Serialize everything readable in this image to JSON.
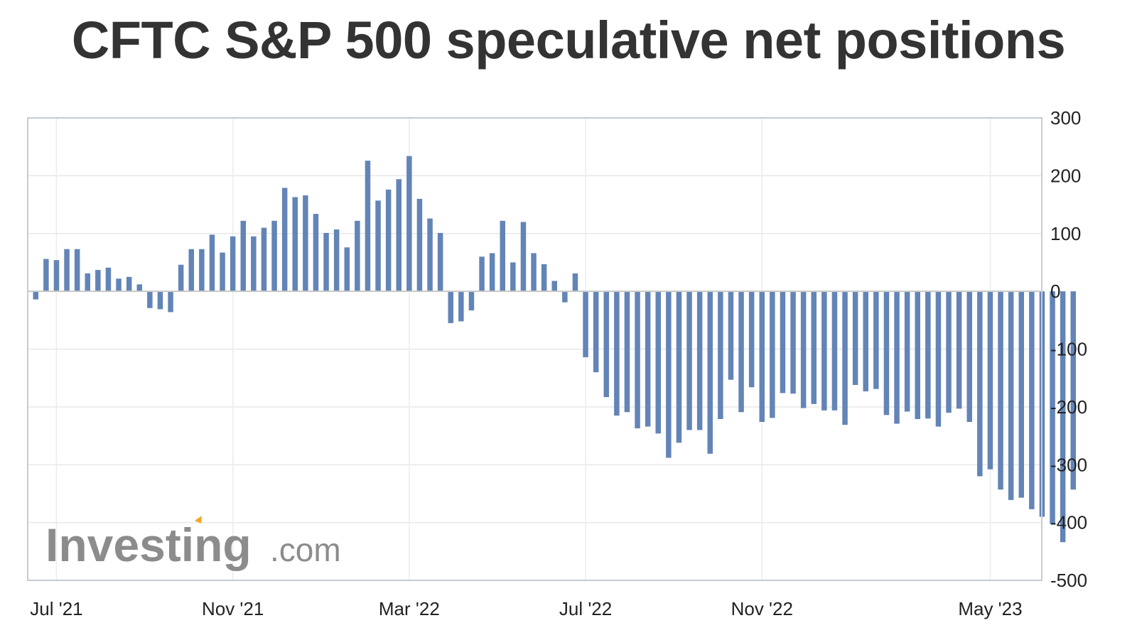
{
  "chart_data": {
    "type": "bar",
    "title": "CFTC S&P 500 speculative net positions",
    "xlabel": "",
    "ylabel": "",
    "ylim": [
      -500,
      300
    ],
    "yticks": [
      300,
      200,
      100,
      0,
      -100,
      -200,
      -300,
      -400,
      -500
    ],
    "xticks": [
      {
        "label": "Jul '21",
        "index": 2
      },
      {
        "label": "Nov '21",
        "index": 19
      },
      {
        "label": "Mar '22",
        "index": 36
      },
      {
        "label": "Jul '22",
        "index": 53
      },
      {
        "label": "Nov '22",
        "index": 70
      },
      {
        "label": "May '23",
        "index": 92
      }
    ],
    "bar_color": "#6384b6",
    "grid": true,
    "values": [
      -14,
      56,
      54,
      73,
      73,
      31,
      37,
      41,
      22,
      25,
      12,
      -29,
      -31,
      -36,
      46,
      73,
      73,
      98,
      67,
      95,
      122,
      95,
      110,
      122,
      179,
      163,
      166,
      134,
      101,
      107,
      76,
      122,
      226,
      157,
      176,
      194,
      234,
      160,
      126,
      101,
      -55,
      -52,
      -33,
      60,
      66,
      122,
      50,
      120,
      66,
      47,
      18,
      -19,
      31,
      -114,
      -140,
      -183,
      -215,
      -209,
      -237,
      -234,
      -246,
      -288,
      -262,
      -240,
      -240,
      -281,
      -221,
      -153,
      -209,
      -166,
      -226,
      -219,
      -176,
      -177,
      -202,
      -195,
      -206,
      -206,
      -231,
      -162,
      -173,
      -169,
      -214,
      -229,
      -208,
      -221,
      -220,
      -234,
      -210,
      -203,
      -226,
      -320,
      -308,
      -343,
      -361,
      -357,
      -377,
      -390,
      -403,
      -434,
      -343
    ]
  },
  "watermark": {
    "main": "Investing",
    "suffix": ".com"
  }
}
